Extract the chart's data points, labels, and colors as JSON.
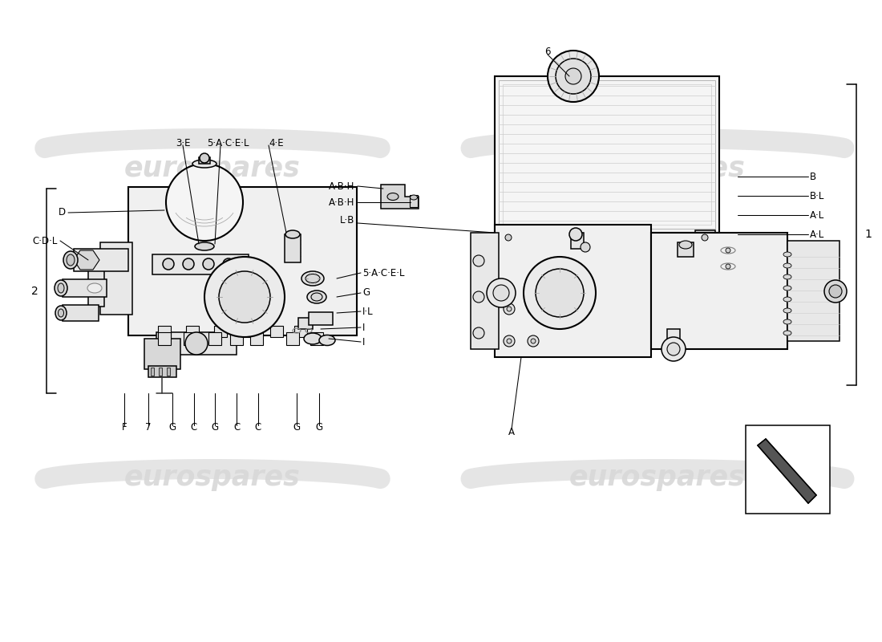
{
  "bg_color": "#ffffff",
  "line_color": "#000000",
  "watermark_text": "eurospares",
  "watermark_color": "#d8d8d8",
  "bracket_left": "2",
  "bracket_right": "1",
  "left_top_labels": [
    [
      "3·E",
      228,
      618
    ],
    [
      "5·A·C·E·L",
      275,
      618
    ],
    [
      "4·E",
      338,
      618
    ]
  ],
  "left_side_labels": [
    [
      "D",
      82,
      535
    ],
    [
      "C·D·L",
      72,
      500
    ]
  ],
  "left_right_labels": [
    [
      "5·A·C·E·L",
      452,
      462
    ],
    [
      "G",
      452,
      440
    ],
    [
      "I·L",
      452,
      415
    ],
    [
      "I",
      452,
      390
    ],
    [
      "I",
      452,
      370
    ]
  ],
  "left_bot_labels": [
    [
      "F",
      155,
      268
    ],
    [
      "7",
      185,
      268
    ],
    [
      "G",
      215,
      268
    ],
    [
      "C",
      242,
      268
    ],
    [
      "G",
      268,
      268
    ],
    [
      "C",
      295,
      268
    ],
    [
      "C",
      322,
      268
    ],
    [
      "G",
      370,
      268
    ],
    [
      "G",
      398,
      268
    ]
  ],
  "center_labels": [
    [
      "A·B·H",
      445,
      562
    ],
    [
      "A·B·H",
      445,
      540
    ],
    [
      "L·B",
      445,
      515
    ]
  ],
  "right_top_label": [
    "6",
    683,
    730
  ],
  "right_right_labels": [
    [
      "B",
      1010,
      580
    ],
    [
      "B·L",
      1010,
      554
    ],
    [
      "A·L",
      1010,
      530
    ],
    [
      "A·L",
      1010,
      505
    ]
  ],
  "right_bot_label": [
    "A",
    638,
    268
  ]
}
